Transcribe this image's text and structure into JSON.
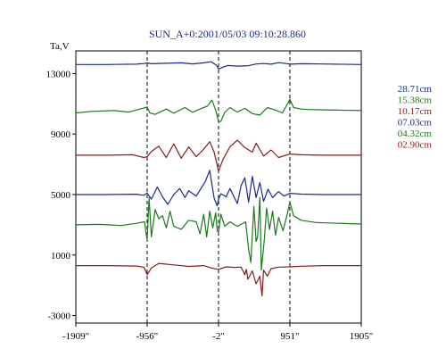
{
  "chart_data": {
    "type": "line",
    "title": "SUN_A+0:2001/05/03 09:10:28.860",
    "ylabel": "Ta,V",
    "xlim": [
      -1909,
      1905
    ],
    "ylim": [
      -3500,
      14500
    ],
    "x_ticks": [
      "-1909\"",
      "-956\"",
      "-2\"",
      "951\"",
      "1905\""
    ],
    "x_tick_values": [
      -1909,
      -956,
      -2,
      951,
      1905
    ],
    "y_ticks": [
      13000,
      9000,
      5000,
      1000,
      -3000
    ],
    "vlines": [
      -956,
      -2,
      951
    ],
    "grid": false,
    "legend_position": "right",
    "series": [
      {
        "name": "28.71cm",
        "color": "#1a2a8a",
        "offset": 13600,
        "x": [
          -1909,
          -1500,
          -1100,
          -1000,
          -956,
          -900,
          -700,
          -500,
          -350,
          -200,
          -100,
          -30,
          -2,
          50,
          120,
          250,
          400,
          500,
          600,
          700,
          800,
          900,
          951,
          1100,
          1400,
          1905
        ],
        "y": [
          0,
          0,
          20,
          60,
          100,
          50,
          80,
          110,
          40,
          110,
          180,
          -50,
          -300,
          -200,
          -70,
          -110,
          -80,
          30,
          60,
          20,
          120,
          60,
          20,
          50,
          30,
          0
        ]
      },
      {
        "name": "15.38cm",
        "color": "#1a7a1a",
        "offset": 10500,
        "x": [
          -1909,
          -1700,
          -1400,
          -1200,
          -1050,
          -956,
          -920,
          -850,
          -700,
          -600,
          -450,
          -350,
          -250,
          -150,
          -90,
          -40,
          -2,
          30,
          80,
          150,
          250,
          350,
          450,
          550,
          650,
          750,
          850,
          920,
          951,
          1000,
          1100,
          1200,
          1400,
          1600,
          1905
        ],
        "y": [
          -100,
          0,
          50,
          -50,
          150,
          280,
          -100,
          -200,
          150,
          -120,
          250,
          -60,
          150,
          350,
          750,
          80,
          -700,
          -650,
          -80,
          250,
          -50,
          200,
          -150,
          -250,
          250,
          100,
          -100,
          500,
          800,
          250,
          150,
          120,
          100,
          80,
          50
        ]
      },
      {
        "name": "10.17cm",
        "color": "#8b1a1a",
        "offset": 7600,
        "x": [
          -1909,
          -1500,
          -1150,
          -1000,
          -956,
          -900,
          -800,
          -700,
          -600,
          -500,
          -400,
          -300,
          -200,
          -120,
          -60,
          -2,
          60,
          150,
          250,
          350,
          450,
          500,
          600,
          700,
          800,
          951,
          1100,
          1400,
          1905
        ],
        "y": [
          0,
          0,
          30,
          -150,
          -100,
          250,
          600,
          -150,
          750,
          -200,
          550,
          -100,
          400,
          900,
          200,
          -1050,
          -250,
          550,
          1000,
          500,
          200,
          800,
          -50,
          350,
          -150,
          80,
          30,
          0,
          0
        ]
      },
      {
        "name": "07.03cm",
        "color": "#1a2a8a",
        "offset": 5000,
        "x": [
          -1909,
          -1500,
          -1100,
          -1000,
          -956,
          -900,
          -820,
          -750,
          -680,
          -600,
          -520,
          -450,
          -400,
          -300,
          -250,
          -180,
          -120,
          -60,
          -20,
          -2,
          30,
          100,
          150,
          250,
          300,
          350,
          400,
          450,
          500,
          550,
          600,
          660,
          720,
          800,
          870,
          951,
          1100,
          1400,
          1905
        ],
        "y": [
          0,
          0,
          20,
          -50,
          100,
          -300,
          500,
          -150,
          -650,
          0,
          400,
          -200,
          250,
          -100,
          300,
          850,
          1600,
          -250,
          -750,
          -300,
          50,
          -150,
          400,
          -600,
          600,
          1100,
          -500,
          1200,
          -200,
          800,
          -450,
          350,
          -200,
          200,
          -100,
          80,
          30,
          0,
          0
        ]
      },
      {
        "name": "04.32cm",
        "color": "#1a7a1a",
        "offset": 3000,
        "x": [
          -1909,
          -1600,
          -1300,
          -1100,
          -990,
          -970,
          -956,
          -930,
          -900,
          -850,
          -800,
          -750,
          -700,
          -650,
          -600,
          -500,
          -400,
          -300,
          -250,
          -200,
          -160,
          -120,
          -80,
          -40,
          -20,
          -2,
          30,
          80,
          150,
          250,
          360,
          400,
          430,
          470,
          500,
          520,
          550,
          570,
          610,
          640,
          680,
          720,
          760,
          800,
          860,
          920,
          951,
          1000,
          1100,
          1300,
          1600,
          1905
        ],
        "y": [
          0,
          30,
          -50,
          100,
          200,
          -600,
          -1000,
          1800,
          -800,
          1000,
          400,
          600,
          -200,
          900,
          -100,
          -300,
          300,
          200,
          -600,
          700,
          -800,
          900,
          -200,
          800,
          -400,
          -500,
          700,
          -100,
          200,
          -100,
          200,
          -1600,
          -2500,
          1200,
          -1100,
          -800,
          1800,
          -3000,
          -1000,
          1100,
          -300,
          900,
          -700,
          500,
          -400,
          800,
          1500,
          600,
          300,
          150,
          100,
          50
        ]
      },
      {
        "name": "02.90cm",
        "color": "#8b1a1a",
        "offset": 300,
        "x": [
          -1909,
          -1500,
          -1100,
          -1000,
          -956,
          -900,
          -800,
          -600,
          -400,
          -200,
          -100,
          -2,
          100,
          200,
          300,
          350,
          370,
          390,
          450,
          500,
          550,
          580,
          600,
          650,
          700,
          800,
          951,
          1100,
          1400,
          1905
        ],
        "y": [
          0,
          0,
          -30,
          -100,
          -600,
          -150,
          150,
          50,
          -50,
          0,
          -150,
          -250,
          -80,
          -120,
          -100,
          -600,
          -250,
          -900,
          -350,
          -1200,
          -700,
          -2000,
          -300,
          -700,
          -200,
          -100,
          -80,
          -40,
          0,
          0
        ]
      }
    ]
  }
}
